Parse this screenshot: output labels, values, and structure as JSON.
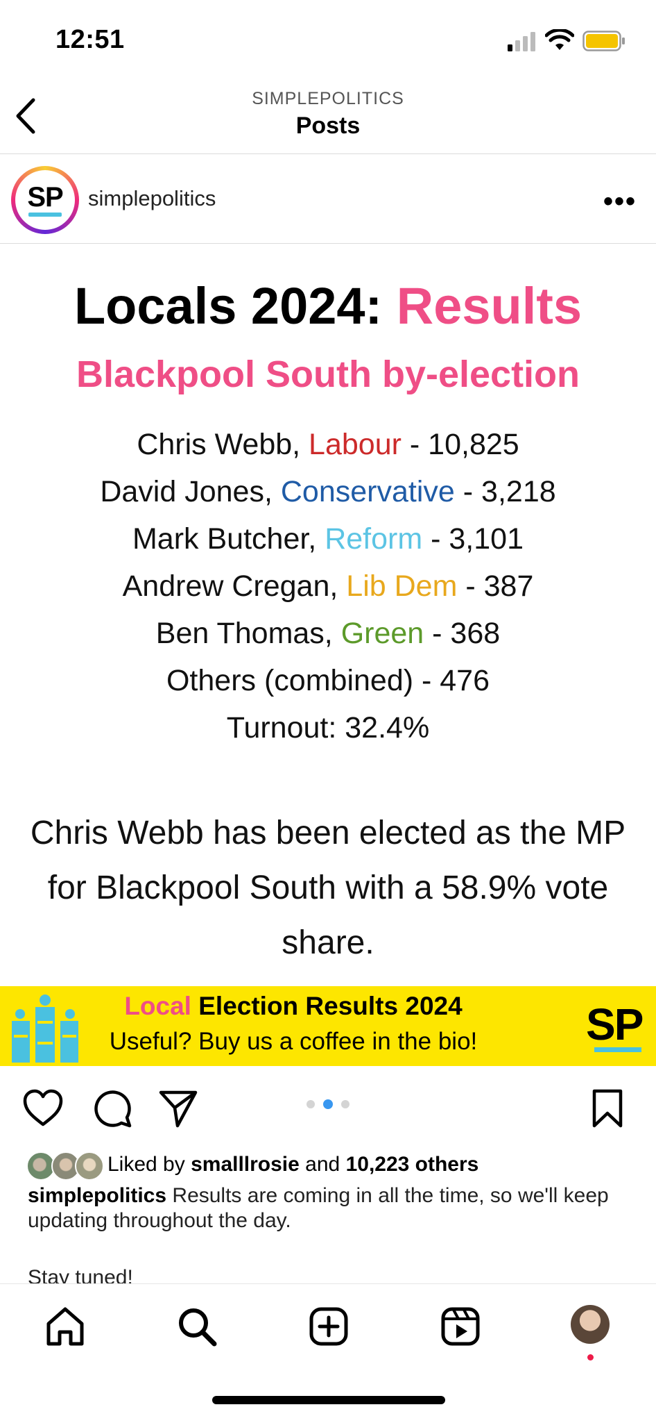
{
  "status_bar": {
    "time": "12:51"
  },
  "nav": {
    "account": "SIMPLEPOLITICS",
    "title": "Posts"
  },
  "post": {
    "avatar_text": "SP",
    "username": "simplepolitics",
    "title_part1": "Locals 2024: ",
    "title_part2": "Results",
    "subtitle": "Blackpool South by-election",
    "results": [
      {
        "pre": "Chris Webb, ",
        "party": "Labour",
        "post": " - 10,825"
      },
      {
        "pre": "David Jones, ",
        "party": "Conservative",
        "post": " - 3,218"
      },
      {
        "pre": "Mark Butcher, ",
        "party": "Reform",
        "post": " - 3,101"
      },
      {
        "pre": "Andrew Cregan, ",
        "party": "Lib Dem",
        "post": " - 387"
      },
      {
        "pre": "Ben Thomas, ",
        "party": "Green",
        "post": " - 368"
      }
    ],
    "others": "Others (combined) - 476",
    "turnout": "Turnout: 32.4%",
    "statement": "Chris Webb has been elected as the MP for Blackpool South with a 58.9% vote share.",
    "banner": {
      "line1_highlight": "Local",
      "line1_rest": " Election Results 2024",
      "line2": "Useful? Buy us a coffee in the bio!",
      "logo": "SP"
    },
    "carousel": {
      "current": 2,
      "total": 3
    },
    "liked_by_user": "smalllrosie",
    "liked_count": "10,223 others",
    "liked_prefix": "Liked by ",
    "liked_and": " and ",
    "caption_user": "simplepolitics",
    "caption_text": " Results are coming in all the time, so we'll keep updating throughout the day.",
    "caption_more": "Stay tuned!"
  },
  "colors": {
    "accent_pink": "#ef4e86",
    "banner_yellow": "#fde600",
    "labour": "#cc2a2a",
    "conservative": "#1f5ba6",
    "reform": "#5cc4e4",
    "lib_dem": "#e8a81d",
    "green": "#5c9a2a"
  },
  "icons": [
    "back-chevron-icon",
    "more-icon",
    "heart-icon",
    "comment-icon",
    "share-icon",
    "bookmark-icon",
    "home-icon",
    "search-icon",
    "create-icon",
    "reels-icon"
  ]
}
